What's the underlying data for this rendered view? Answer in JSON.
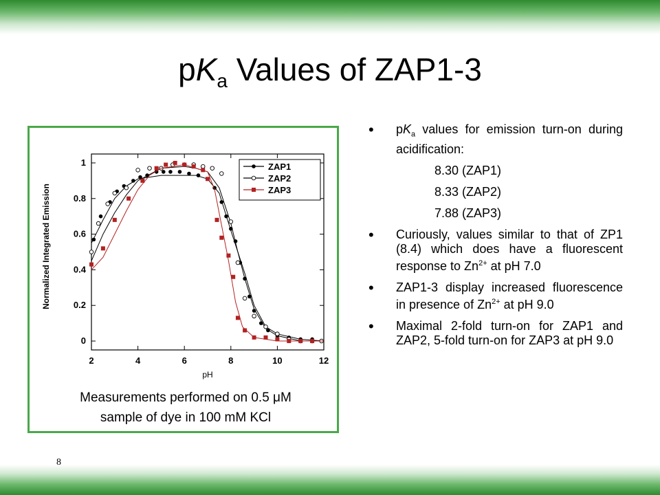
{
  "slide": {
    "title_prefix": "p",
    "title_k": "K",
    "title_sub": "a",
    "title_rest": " Values of ZAP1-3",
    "page_number": "8",
    "caption_line1": "Measurements performed on 0.5 μM",
    "caption_line2": "sample of dye in 100 mM KCl"
  },
  "bullets": {
    "b1_p": "p",
    "b1_k": "K",
    "b1_sub": "a",
    "b1_text": " values for emission turn-on during acidification:",
    "values": [
      "8.30 (ZAP1)",
      "8.33 (ZAP2)",
      "7.88 (ZAP3)"
    ],
    "b2_text": "Curiously, values similar to that of ZP1 (8.4) which does have a fluorescent response to Zn",
    "b2_sup": "2+",
    "b2_tail": " at pH 7.0",
    "b3_text": "ZAP1-3 display increased fluorescence in presence of Zn",
    "b3_sup": "2+",
    "b3_tail": " at pH 9.0",
    "b4_text": "Maximal 2-fold turn-on for ZAP1 and ZAP2, 5-fold turn-on for ZAP3 at pH 9.0"
  },
  "colors": {
    "band": "#2e8b2e",
    "frame": "#4aa84a",
    "zap3": "#b22222"
  },
  "chart_data": {
    "type": "scatter",
    "xlabel": "pH",
    "ylabel": "Normalized Integrated Emission",
    "xlim": [
      2,
      12
    ],
    "ylim": [
      -0.05,
      1.05
    ],
    "xticks": [
      "2",
      "4",
      "6",
      "8",
      "10",
      "12"
    ],
    "yticks": [
      "0",
      "0.2",
      "0.4",
      "0.6",
      "0.8",
      "1"
    ],
    "legend_position": "top-right",
    "series": [
      {
        "name": "ZAP1",
        "marker": "filled-circle",
        "color": "#000000",
        "x": [
          2.1,
          2.4,
          2.8,
          3.1,
          3.4,
          3.8,
          4.1,
          4.4,
          4.8,
          5.1,
          5.4,
          5.8,
          6.2,
          6.6,
          7.0,
          7.3,
          7.6,
          7.8,
          8.0,
          8.2,
          8.4,
          8.6,
          8.8,
          9.0,
          9.3,
          9.6,
          10.0,
          10.5,
          11.0,
          11.5
        ],
        "y": [
          0.57,
          0.7,
          0.78,
          0.84,
          0.87,
          0.9,
          0.92,
          0.93,
          0.95,
          0.95,
          0.95,
          0.95,
          0.94,
          0.93,
          0.91,
          0.86,
          0.78,
          0.7,
          0.63,
          0.56,
          0.44,
          0.35,
          0.25,
          0.17,
          0.1,
          0.06,
          0.03,
          0.02,
          0.01,
          0.01
        ],
        "fit_x": [
          2,
          2.5,
          3,
          3.5,
          4,
          5,
          6,
          6.5,
          7,
          7.5,
          8,
          8.3,
          8.6,
          9,
          9.5,
          10,
          11,
          12
        ],
        "fit_y": [
          0.55,
          0.68,
          0.8,
          0.87,
          0.91,
          0.93,
          0.93,
          0.93,
          0.91,
          0.83,
          0.62,
          0.5,
          0.38,
          0.2,
          0.08,
          0.04,
          0.01,
          0.0
        ]
      },
      {
        "name": "ZAP2",
        "marker": "open-circle",
        "color": "#000000",
        "x": [
          2.0,
          2.3,
          2.7,
          3.0,
          3.5,
          4.0,
          4.5,
          5.0,
          5.5,
          6.0,
          6.4,
          6.8,
          7.2,
          7.6,
          8.0,
          8.3,
          8.6,
          9.0,
          9.5,
          10.0,
          10.5,
          11.0,
          11.5,
          11.9
        ],
        "y": [
          0.5,
          0.66,
          0.77,
          0.83,
          0.86,
          0.96,
          0.97,
          0.97,
          0.99,
          0.99,
          0.99,
          0.98,
          0.97,
          0.94,
          0.67,
          0.44,
          0.24,
          0.14,
          0.08,
          0.04,
          0.01,
          0.0,
          0.0,
          0.0
        ],
        "fit_x": [
          2,
          2.5,
          3,
          3.5,
          4,
          5,
          6,
          6.5,
          7,
          7.5,
          8,
          8.3,
          8.6,
          9,
          9.5,
          10,
          11,
          12
        ],
        "fit_y": [
          0.45,
          0.6,
          0.72,
          0.82,
          0.9,
          0.97,
          0.98,
          0.97,
          0.95,
          0.86,
          0.66,
          0.5,
          0.35,
          0.18,
          0.07,
          0.03,
          0.0,
          0.0
        ]
      },
      {
        "name": "ZAP3",
        "marker": "filled-square",
        "color": "#b22222",
        "x": [
          2.0,
          2.5,
          3.0,
          3.6,
          4.2,
          4.8,
          5.2,
          5.6,
          6.0,
          6.4,
          6.8,
          7.0,
          7.4,
          7.6,
          7.9,
          8.1,
          8.3,
          8.6,
          9.0,
          9.5,
          10.0,
          10.5,
          11.0,
          11.5
        ],
        "y": [
          0.43,
          0.52,
          0.68,
          0.8,
          0.9,
          0.97,
          0.99,
          1.0,
          0.99,
          0.98,
          0.96,
          0.91,
          0.68,
          0.58,
          0.48,
          0.36,
          0.13,
          0.06,
          0.02,
          0.02,
          0.01,
          0.0,
          0.0,
          0.0
        ],
        "fit_x": [
          2,
          2.5,
          3,
          3.5,
          4,
          4.5,
          5,
          6,
          7,
          7.3,
          7.6,
          7.9,
          8.2,
          8.5,
          9,
          10,
          11,
          12
        ],
        "fit_y": [
          0.4,
          0.47,
          0.6,
          0.73,
          0.85,
          0.93,
          0.97,
          0.99,
          0.95,
          0.85,
          0.65,
          0.45,
          0.22,
          0.08,
          0.02,
          0.0,
          0.0,
          0.0
        ]
      }
    ]
  }
}
